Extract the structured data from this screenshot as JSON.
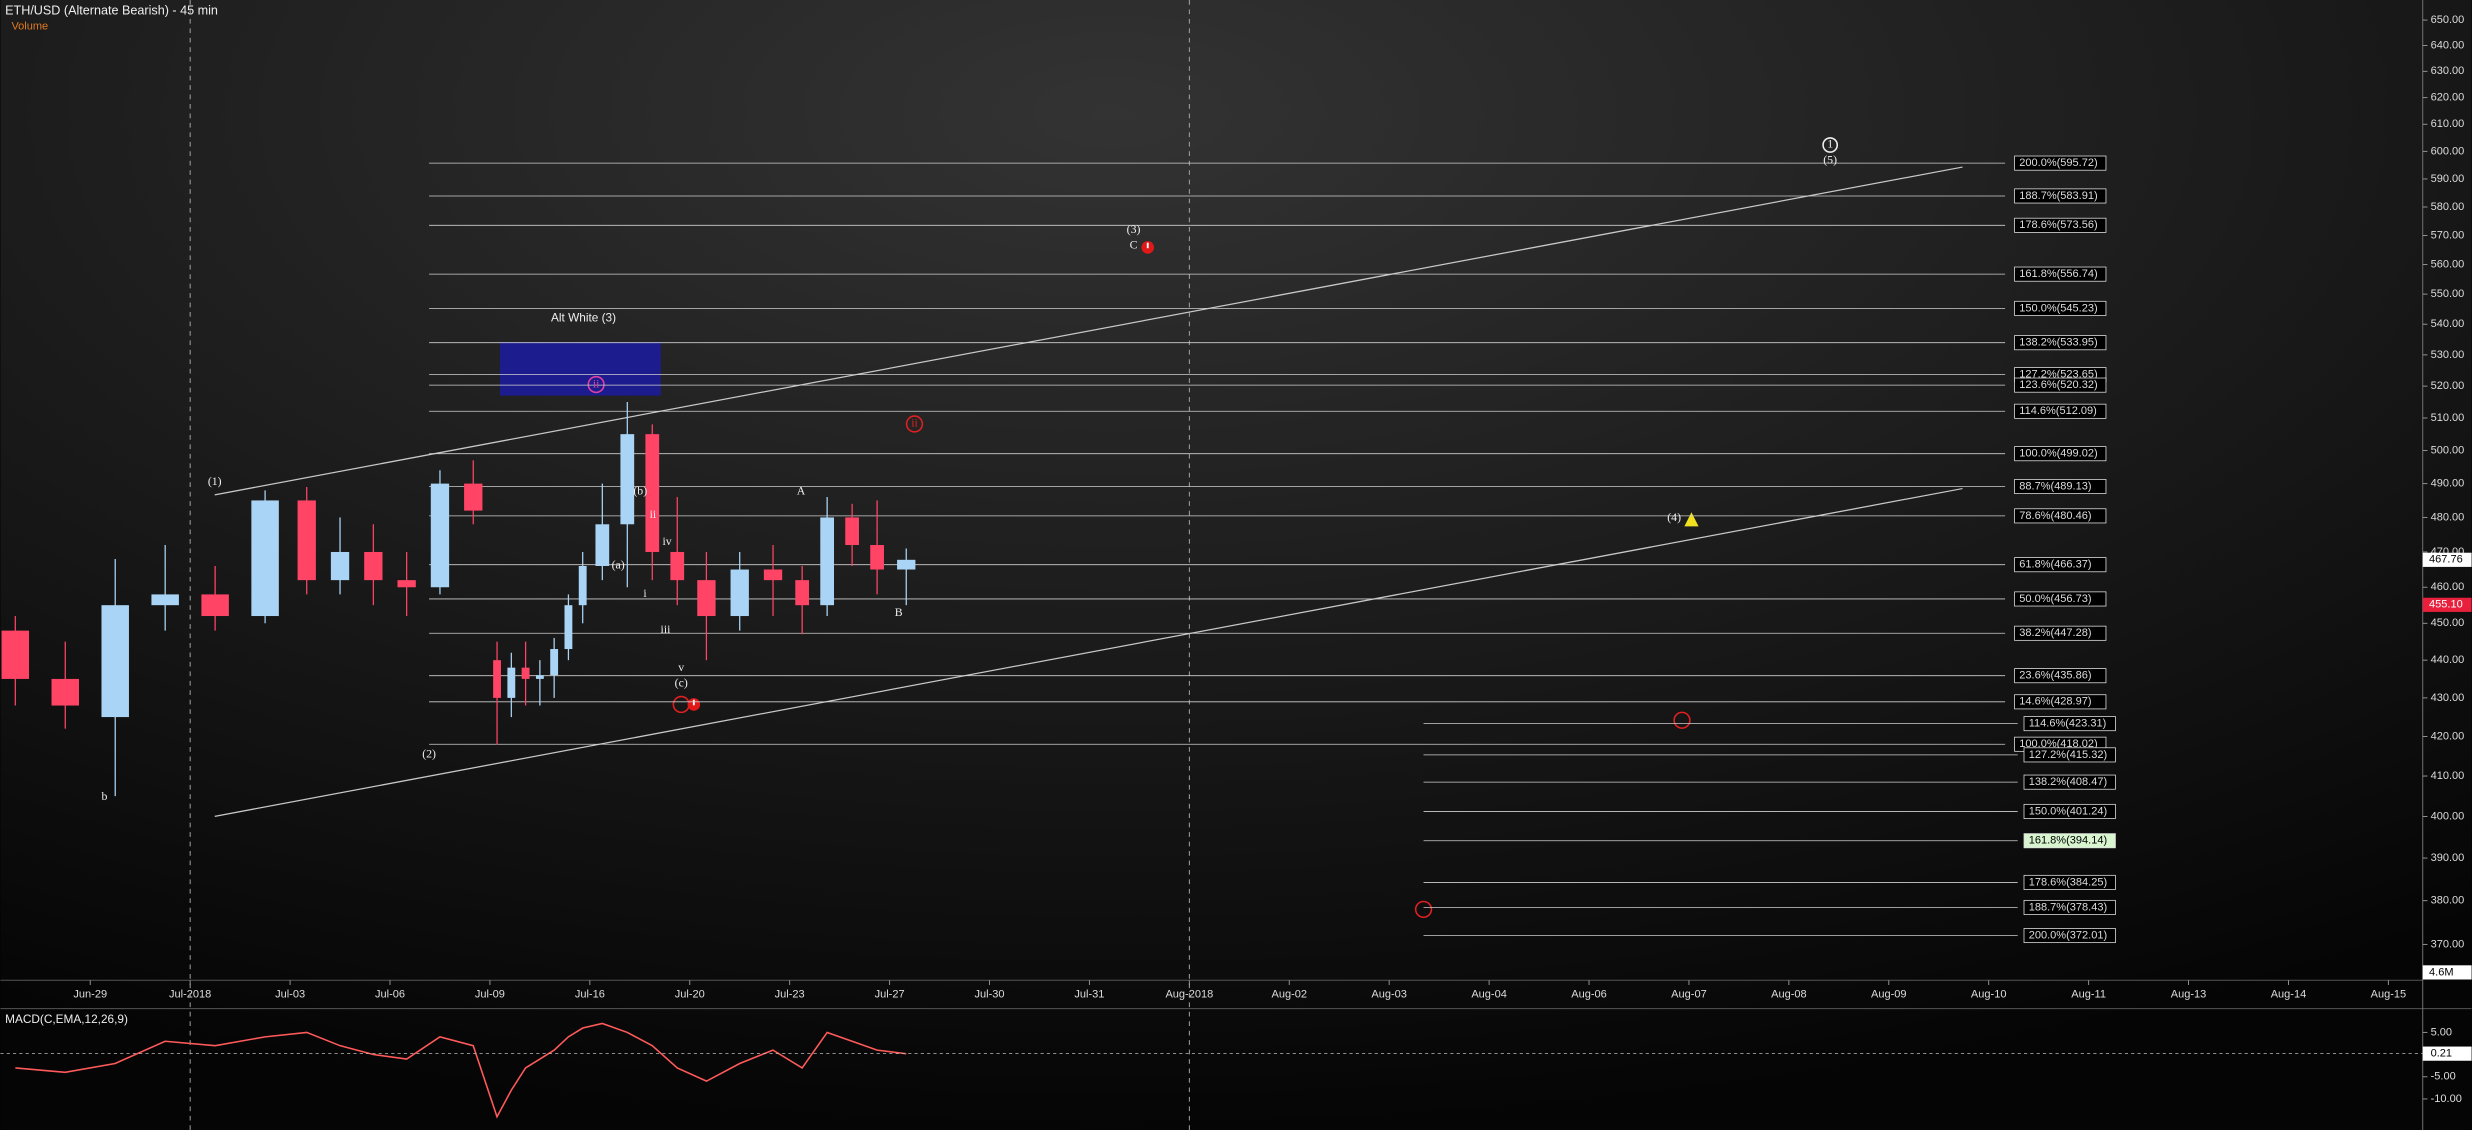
{
  "chart_data": [
    {
      "type": "candlestick",
      "title": "ETH/USD (Alternate Bearish) - 45 min",
      "subtitle": "Volume",
      "x": [
        "2018-06-27",
        "2018-06-28",
        "2018-06-29",
        "2018-06-30",
        "2018-07-01",
        "2018-07-02",
        "2018-07-03",
        "2018-07-04",
        "2018-07-05",
        "2018-07-06",
        "2018-07-07",
        "2018-07-08",
        "2018-07-09",
        "2018-07-10",
        "2018-07-11",
        "2018-07-12",
        "2018-07-13",
        "2018-07-14",
        "2018-07-15",
        "2018-07-16",
        "2018-07-17",
        "2018-07-18",
        "2018-07-19",
        "2018-07-20",
        "2018-07-21",
        "2018-07-22",
        "2018-07-23",
        "2018-07-24",
        "2018-07-25",
        "2018-07-26",
        "2018-07-27"
      ],
      "open": [
        448,
        435,
        425,
        455,
        458,
        452,
        485,
        462,
        470,
        462,
        460,
        490,
        440,
        430,
        438,
        435,
        436,
        443,
        455,
        466,
        478,
        505,
        470,
        462,
        452,
        465,
        462,
        455,
        480,
        472,
        465
      ],
      "high": [
        452,
        445,
        468,
        472,
        466,
        488,
        489,
        480,
        478,
        470,
        494,
        497,
        445,
        442,
        445,
        440,
        446,
        458,
        470,
        490,
        515,
        508,
        486,
        470,
        470,
        472,
        466,
        486,
        484,
        485,
        471
      ],
      "low": [
        428,
        422,
        405,
        448,
        448,
        450,
        458,
        458,
        455,
        452,
        458,
        478,
        418,
        425,
        428,
        428,
        430,
        440,
        450,
        462,
        460,
        462,
        455,
        440,
        448,
        452,
        447,
        452,
        466,
        458,
        455
      ],
      "close": [
        435,
        428,
        455,
        458,
        452,
        485,
        462,
        470,
        462,
        460,
        490,
        482,
        430,
        438,
        435,
        436,
        443,
        455,
        466,
        478,
        505,
        470,
        462,
        452,
        465,
        462,
        455,
        480,
        472,
        465,
        467.76
      ],
      "up_color": "#a9d4f5",
      "down_color": "#ff4466",
      "log_scale": true,
      "ylim": [
        362,
        658
      ],
      "yticks": [
        {
          "value": 370,
          "label": "370.00"
        },
        {
          "value": 380,
          "label": "380.00"
        },
        {
          "value": 390,
          "label": "390.00"
        },
        {
          "value": 400,
          "label": "400.00"
        },
        {
          "value": 410,
          "label": "410.00"
        },
        {
          "value": 420,
          "label": "420.00"
        },
        {
          "value": 430,
          "label": "430.00"
        },
        {
          "value": 440,
          "label": "440.00"
        },
        {
          "value": 450,
          "label": "450.00"
        },
        {
          "value": 460,
          "label": "460.00"
        },
        {
          "value": 470,
          "label": "470.00"
        },
        {
          "value": 480,
          "label": "480.00"
        },
        {
          "value": 490,
          "label": "490.00"
        },
        {
          "value": 500,
          "label": "500.00"
        },
        {
          "value": 510,
          "label": "510.00"
        },
        {
          "value": 520,
          "label": "520.00"
        },
        {
          "value": 530,
          "label": "530.00"
        },
        {
          "value": 540,
          "label": "540.00"
        },
        {
          "value": 550,
          "label": "550.00"
        },
        {
          "value": 560,
          "label": "560.00"
        },
        {
          "value": 570,
          "label": "570.00"
        },
        {
          "value": 580,
          "label": "580.00"
        },
        {
          "value": 590,
          "label": "590.00"
        },
        {
          "value": 600,
          "label": "600.00"
        },
        {
          "value": 610,
          "label": "610.00"
        },
        {
          "value": 620,
          "label": "620.00"
        },
        {
          "value": 630,
          "label": "630.00"
        },
        {
          "value": 640,
          "label": "640.00"
        },
        {
          "value": 650,
          "label": "650.00"
        }
      ],
      "xticks": [
        {
          "value": "2018-06-29",
          "label": "Jun-29"
        },
        {
          "value": "2018-07-01",
          "label": "Jul-2018"
        },
        {
          "value": "2018-07-03",
          "label": "Jul-03"
        },
        {
          "value": "2018-07-06",
          "label": "Jul-06"
        },
        {
          "value": "2018-07-09",
          "label": "Jul-09"
        },
        {
          "value": "2018-07-16",
          "label": "Jul-16"
        },
        {
          "value": "2018-07-20",
          "label": "Jul-20"
        },
        {
          "value": "2018-07-23",
          "label": "Jul-23"
        },
        {
          "value": "2018-07-27",
          "label": "Jul-27"
        },
        {
          "value": "2018-07-30",
          "label": "Jul-30"
        },
        {
          "value": "2018-07-31",
          "label": "Jul-31"
        },
        {
          "value": "2018-08-01",
          "label": "Aug-2018"
        },
        {
          "value": "2018-08-02",
          "label": "Aug-02"
        },
        {
          "value": "2018-08-03",
          "label": "Aug-03"
        },
        {
          "value": "2018-08-04",
          "label": "Aug-04"
        },
        {
          "value": "2018-08-06",
          "label": "Aug-06"
        },
        {
          "value": "2018-08-07",
          "label": "Aug-07"
        },
        {
          "value": "2018-08-08",
          "label": "Aug-08"
        },
        {
          "value": "2018-08-09",
          "label": "Aug-09"
        },
        {
          "value": "2018-08-10",
          "label": "Aug-10"
        },
        {
          "value": "2018-08-11",
          "label": "Aug-11"
        },
        {
          "value": "2018-08-13",
          "label": "Aug-13"
        },
        {
          "value": "2018-08-14",
          "label": "Aug-14"
        },
        {
          "value": "2018-08-15",
          "label": "Aug-15"
        }
      ],
      "fib_levels": [
        {
          "value": 595.72,
          "label": "200.0%(595.72)"
        },
        {
          "value": 583.91,
          "label": "188.7%(583.91)"
        },
        {
          "value": 573.56,
          "label": "178.6%(573.56)"
        },
        {
          "value": 556.74,
          "label": "161.8%(556.74)"
        },
        {
          "value": 545.23,
          "label": "150.0%(545.23)"
        },
        {
          "value": 533.95,
          "label": "138.2%(533.95)"
        },
        {
          "value": 523.65,
          "label": "127.2%(523.65)"
        },
        {
          "value": 520.32,
          "label": "123.6%(520.32)"
        },
        {
          "value": 512.09,
          "label": "114.6%(512.09)"
        },
        {
          "value": 499.02,
          "label": "100.0%(499.02)"
        },
        {
          "value": 489.13,
          "label": "88.7%(489.13)"
        },
        {
          "value": 480.46,
          "label": "78.6%(480.46)"
        },
        {
          "value": 466.37,
          "label": "61.8%(466.37)"
        },
        {
          "value": 456.73,
          "label": "50.0%(456.73)"
        },
        {
          "value": 447.28,
          "label": "38.2%(447.28)"
        },
        {
          "value": 435.86,
          "label": "23.6%(435.86)"
        },
        {
          "value": 428.97,
          "label": "14.6%(428.97)"
        },
        {
          "value": 418.02,
          "label": "100.0%(418.02)"
        }
      ],
      "fib_levels_lower": [
        {
          "value": 423.31,
          "label": "114.6%(423.31)"
        },
        {
          "value": 415.32,
          "label": "127.2%(415.32)"
        },
        {
          "value": 408.47,
          "label": "138.2%(408.47)"
        },
        {
          "value": 401.24,
          "label": "150.0%(401.24)"
        },
        {
          "value": 394.14,
          "label": "161.8%(394.14)",
          "highlight_color": "#d8f5d0"
        },
        {
          "value": 384.25,
          "label": "178.6%(384.25)"
        },
        {
          "value": 378.43,
          "label": "188.7%(378.43)"
        },
        {
          "value": 372.01,
          "label": "200.0%(372.01)"
        }
      ],
      "price_badges": [
        {
          "value": 455.1,
          "label": "455.10",
          "color": "#e8203c"
        }
      ],
      "volume_badge": "4.6M",
      "wave_labels": [
        "(1)",
        "(2)",
        "b",
        "Alt White (3)",
        "(b)",
        "(a)",
        "ii",
        "iv",
        "i",
        "iii",
        "v",
        "(c)",
        "A",
        "B",
        "(3)",
        "C",
        "(4)",
        "(5)",
        "1",
        "ii",
        "ii"
      ]
    },
    {
      "type": "line",
      "x": [
        "2018-06-27",
        "2018-06-28",
        "2018-06-29",
        "2018-06-30",
        "2018-07-01",
        "2018-07-02",
        "2018-07-03",
        "2018-07-04",
        "2018-07-05",
        "2018-07-06",
        "2018-07-07",
        "2018-07-08",
        "2018-07-09",
        "2018-07-10",
        "2018-07-11",
        "2018-07-12",
        "2018-07-13",
        "2018-07-14",
        "2018-07-15",
        "2018-07-16",
        "2018-07-17",
        "2018-07-18",
        "2018-07-19",
        "2018-07-20",
        "2018-07-21",
        "2018-07-22",
        "2018-07-23",
        "2018-07-24",
        "2018-07-25",
        "2018-07-26",
        "2018-07-27"
      ],
      "series": [
        {
          "name": "MACD(C,EMA,12,26,9)",
          "color": "#ff5a5a",
          "values": [
            -3,
            -4,
            -2,
            3,
            2,
            4,
            5,
            2,
            0,
            -1,
            4,
            2,
            -14,
            -8,
            -3,
            -1,
            1,
            4,
            6,
            7,
            5,
            2,
            -3,
            -6,
            -2,
            1,
            -3,
            5,
            3,
            1,
            0.21
          ]
        }
      ],
      "ylim": [
        -17,
        10
      ],
      "yticks": [
        {
          "value": 5,
          "label": "5.00"
        },
        {
          "value": -5,
          "label": "-5.00"
        },
        {
          "value": -10,
          "label": "-10.00"
        }
      ]
    }
  ]
}
